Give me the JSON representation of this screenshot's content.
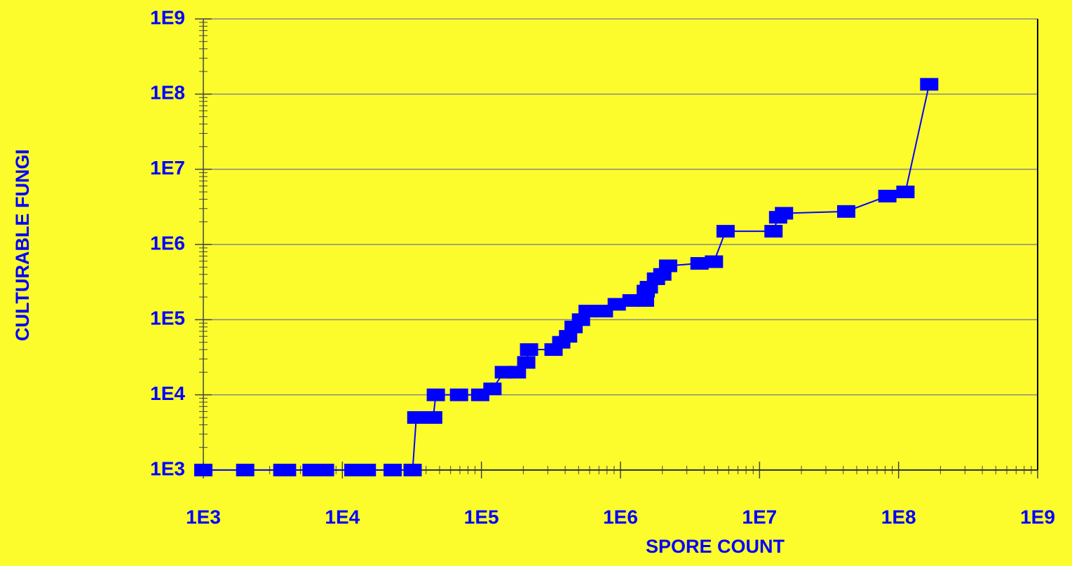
{
  "chart_data": {
    "type": "line",
    "x_label": "SPORE COUNT",
    "y_label": "CULTURABLE FUNGI",
    "log_x": true,
    "log_y": true,
    "grid": true,
    "xlim": [
      1000,
      1000000000
    ],
    "ylim": [
      1000,
      1000000000
    ],
    "xticks": [
      {
        "value": 1000,
        "label": "1E3"
      },
      {
        "value": 10000,
        "label": "1E4"
      },
      {
        "value": 100000,
        "label": "1E5"
      },
      {
        "value": 1000000,
        "label": "1E6"
      },
      {
        "value": 10000000,
        "label": "1E7"
      },
      {
        "value": 100000000,
        "label": "1E8"
      },
      {
        "value": 1000000000,
        "label": "1E9"
      }
    ],
    "yticks": [
      {
        "value": 1000,
        "label": "1E3"
      },
      {
        "value": 10000,
        "label": "1E4"
      },
      {
        "value": 100000,
        "label": "1E5"
      },
      {
        "value": 1000000,
        "label": "1E6"
      },
      {
        "value": 10000000,
        "label": "1E7"
      },
      {
        "value": 100000000,
        "label": "1E8"
      },
      {
        "value": 1000000000,
        "label": "1E9"
      }
    ],
    "series": [
      {
        "color": "#0000ff",
        "x": [
          1000,
          2000,
          3700,
          4000,
          6000,
          7500,
          12000,
          15000,
          23000,
          32000,
          34000,
          45000,
          47000,
          69000,
          98000,
          120000,
          145000,
          180000,
          210000,
          220000,
          330000,
          375000,
          420000,
          460000,
          520000,
          580000,
          760000,
          940000,
          1200000,
          1500000,
          1520000,
          1600000,
          1800000,
          2000000,
          2200000,
          3700000,
          4700000,
          5700000,
          12600000,
          13600000,
          15000000,
          42000000,
          83000000,
          112000000,
          166000000
        ],
        "values": [
          1000,
          1000,
          1000,
          1000,
          1000,
          1000,
          1000,
          1000,
          1000,
          1000,
          5000,
          5000,
          10000,
          10000,
          10000,
          12000,
          20000,
          20000,
          27000,
          40000,
          40000,
          50000,
          60000,
          80000,
          100000,
          130000,
          130000,
          160000,
          180000,
          180000,
          240000,
          270000,
          350000,
          400000,
          520000,
          560000,
          590000,
          1500000,
          1500000,
          2300000,
          2600000,
          2750000,
          4400000,
          5000000,
          135000000
        ]
      }
    ]
  }
}
